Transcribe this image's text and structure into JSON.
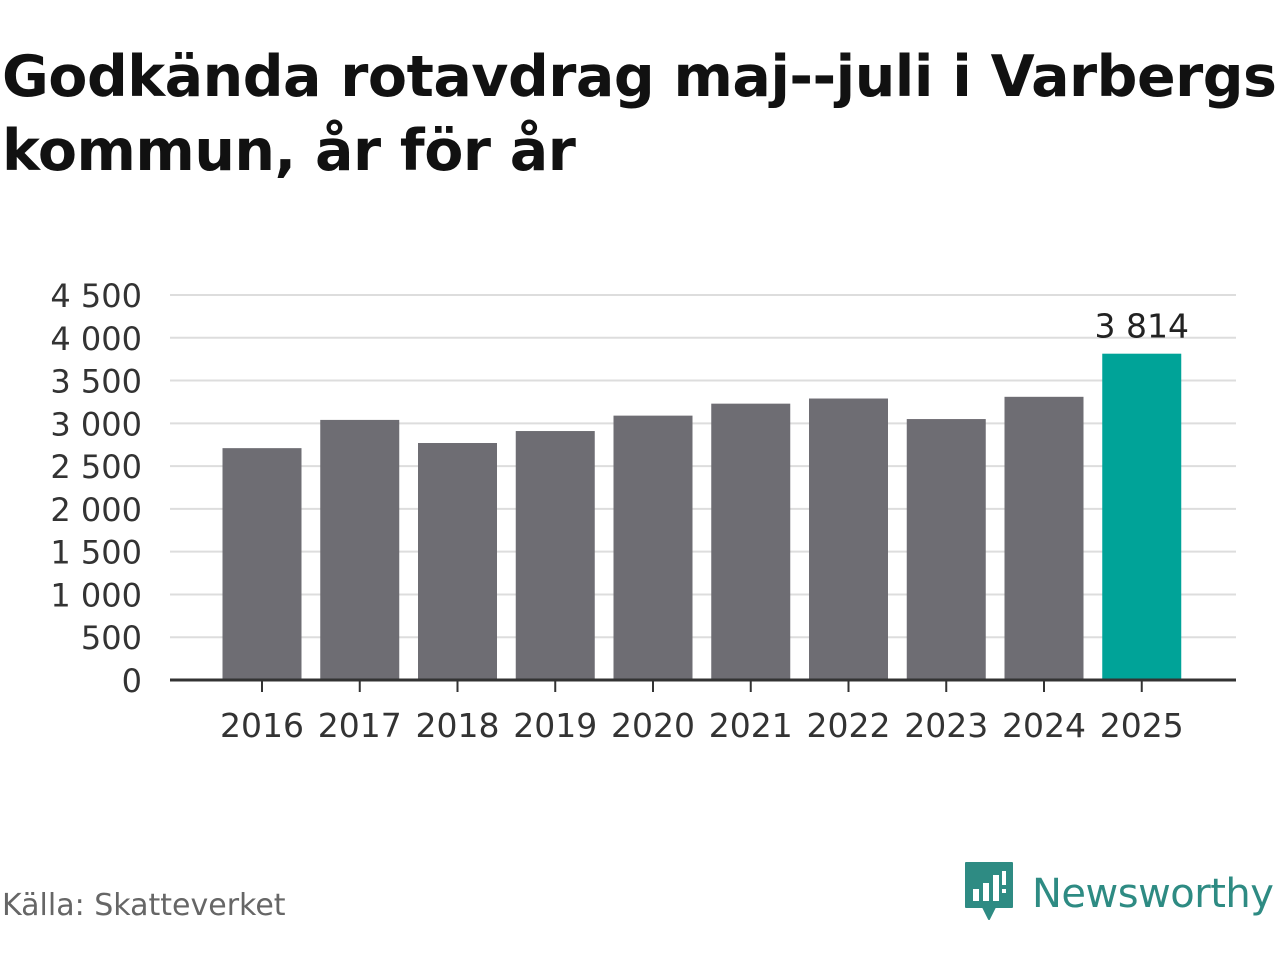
{
  "title": "Godkända rotavdrag maj--juli i Varbergs kommun, år för år",
  "source": "Källa: Skatteverket",
  "brand": {
    "name": "Newsworthy",
    "icon": "newsworthy-logo-icon",
    "color": "#2e8b83"
  },
  "chart_data": {
    "type": "bar",
    "categories": [
      "2016",
      "2017",
      "2018",
      "2019",
      "2020",
      "2021",
      "2022",
      "2023",
      "2024",
      "2025"
    ],
    "values": [
      2710,
      3040,
      2770,
      2910,
      3090,
      3230,
      3290,
      3050,
      3310,
      3814
    ],
    "value_labels": {
      "9": "3 814"
    },
    "ylim": [
      0,
      4500
    ],
    "yticks": [
      0,
      500,
      1000,
      1500,
      2000,
      2500,
      3000,
      3500,
      4000,
      4500
    ],
    "ytick_labels": [
      "0",
      "500",
      "1 000",
      "1 500",
      "2 000",
      "2 500",
      "3 000",
      "3 500",
      "4 000",
      "4 500"
    ],
    "xlabel": "",
    "ylabel": "",
    "grid": true,
    "colors": {
      "bar": "#6e6d73",
      "highlight": "#00a398",
      "grid": "#dddddd",
      "axis": "#333333"
    },
    "highlight_index": 9
  }
}
